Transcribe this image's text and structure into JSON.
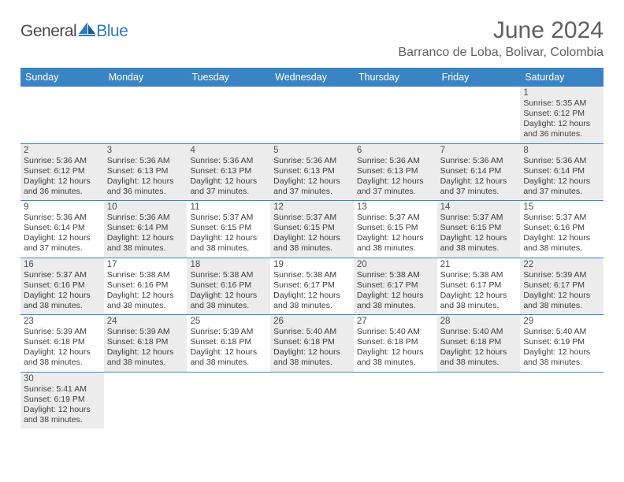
{
  "logo": {
    "part1": "General",
    "part2": "Blue"
  },
  "title": "June 2024",
  "location": "Barranco de Loba, Bolivar, Colombia",
  "colors": {
    "header_bg": "#3b84c4",
    "header_text": "#ffffff",
    "shaded_cell": "#ececec",
    "row_border": "#3b84c4",
    "title_text": "#606060",
    "body_text": "#404040",
    "logo_gray": "#4a4a4a",
    "logo_blue": "#2f7bbf"
  },
  "typography": {
    "title_fontsize": 30,
    "location_fontsize": 16,
    "weekday_fontsize": 12.5,
    "daynum_fontsize": 11.5,
    "body_fontsize": 10.5
  },
  "weekdays": [
    "Sunday",
    "Monday",
    "Tuesday",
    "Wednesday",
    "Thursday",
    "Friday",
    "Saturday"
  ],
  "weeks": [
    [
      {
        "empty": true
      },
      {
        "empty": true
      },
      {
        "empty": true
      },
      {
        "empty": true
      },
      {
        "empty": true
      },
      {
        "empty": true
      },
      {
        "num": "1",
        "shaded": true,
        "sunrise": "Sunrise: 5:35 AM",
        "sunset": "Sunset: 6:12 PM",
        "day1": "Daylight: 12 hours",
        "day2": "and 36 minutes."
      }
    ],
    [
      {
        "num": "2",
        "shaded": true,
        "sunrise": "Sunrise: 5:36 AM",
        "sunset": "Sunset: 6:12 PM",
        "day1": "Daylight: 12 hours",
        "day2": "and 36 minutes."
      },
      {
        "num": "3",
        "shaded": true,
        "sunrise": "Sunrise: 5:36 AM",
        "sunset": "Sunset: 6:13 PM",
        "day1": "Daylight: 12 hours",
        "day2": "and 36 minutes."
      },
      {
        "num": "4",
        "shaded": true,
        "sunrise": "Sunrise: 5:36 AM",
        "sunset": "Sunset: 6:13 PM",
        "day1": "Daylight: 12 hours",
        "day2": "and 37 minutes."
      },
      {
        "num": "5",
        "shaded": true,
        "sunrise": "Sunrise: 5:36 AM",
        "sunset": "Sunset: 6:13 PM",
        "day1": "Daylight: 12 hours",
        "day2": "and 37 minutes."
      },
      {
        "num": "6",
        "shaded": true,
        "sunrise": "Sunrise: 5:36 AM",
        "sunset": "Sunset: 6:13 PM",
        "day1": "Daylight: 12 hours",
        "day2": "and 37 minutes."
      },
      {
        "num": "7",
        "shaded": true,
        "sunrise": "Sunrise: 5:36 AM",
        "sunset": "Sunset: 6:14 PM",
        "day1": "Daylight: 12 hours",
        "day2": "and 37 minutes."
      },
      {
        "num": "8",
        "shaded": true,
        "sunrise": "Sunrise: 5:36 AM",
        "sunset": "Sunset: 6:14 PM",
        "day1": "Daylight: 12 hours",
        "day2": "and 37 minutes."
      }
    ],
    [
      {
        "num": "9",
        "shaded": false,
        "sunrise": "Sunrise: 5:36 AM",
        "sunset": "Sunset: 6:14 PM",
        "day1": "Daylight: 12 hours",
        "day2": "and 37 minutes."
      },
      {
        "num": "10",
        "shaded": true,
        "sunrise": "Sunrise: 5:36 AM",
        "sunset": "Sunset: 6:14 PM",
        "day1": "Daylight: 12 hours",
        "day2": "and 38 minutes."
      },
      {
        "num": "11",
        "shaded": false,
        "sunrise": "Sunrise: 5:37 AM",
        "sunset": "Sunset: 6:15 PM",
        "day1": "Daylight: 12 hours",
        "day2": "and 38 minutes."
      },
      {
        "num": "12",
        "shaded": true,
        "sunrise": "Sunrise: 5:37 AM",
        "sunset": "Sunset: 6:15 PM",
        "day1": "Daylight: 12 hours",
        "day2": "and 38 minutes."
      },
      {
        "num": "13",
        "shaded": false,
        "sunrise": "Sunrise: 5:37 AM",
        "sunset": "Sunset: 6:15 PM",
        "day1": "Daylight: 12 hours",
        "day2": "and 38 minutes."
      },
      {
        "num": "14",
        "shaded": true,
        "sunrise": "Sunrise: 5:37 AM",
        "sunset": "Sunset: 6:15 PM",
        "day1": "Daylight: 12 hours",
        "day2": "and 38 minutes."
      },
      {
        "num": "15",
        "shaded": false,
        "sunrise": "Sunrise: 5:37 AM",
        "sunset": "Sunset: 6:16 PM",
        "day1": "Daylight: 12 hours",
        "day2": "and 38 minutes."
      }
    ],
    [
      {
        "num": "16",
        "shaded": true,
        "sunrise": "Sunrise: 5:37 AM",
        "sunset": "Sunset: 6:16 PM",
        "day1": "Daylight: 12 hours",
        "day2": "and 38 minutes."
      },
      {
        "num": "17",
        "shaded": false,
        "sunrise": "Sunrise: 5:38 AM",
        "sunset": "Sunset: 6:16 PM",
        "day1": "Daylight: 12 hours",
        "day2": "and 38 minutes."
      },
      {
        "num": "18",
        "shaded": true,
        "sunrise": "Sunrise: 5:38 AM",
        "sunset": "Sunset: 6:16 PM",
        "day1": "Daylight: 12 hours",
        "day2": "and 38 minutes."
      },
      {
        "num": "19",
        "shaded": false,
        "sunrise": "Sunrise: 5:38 AM",
        "sunset": "Sunset: 6:17 PM",
        "day1": "Daylight: 12 hours",
        "day2": "and 38 minutes."
      },
      {
        "num": "20",
        "shaded": true,
        "sunrise": "Sunrise: 5:38 AM",
        "sunset": "Sunset: 6:17 PM",
        "day1": "Daylight: 12 hours",
        "day2": "and 38 minutes."
      },
      {
        "num": "21",
        "shaded": false,
        "sunrise": "Sunrise: 5:38 AM",
        "sunset": "Sunset: 6:17 PM",
        "day1": "Daylight: 12 hours",
        "day2": "and 38 minutes."
      },
      {
        "num": "22",
        "shaded": true,
        "sunrise": "Sunrise: 5:39 AM",
        "sunset": "Sunset: 6:17 PM",
        "day1": "Daylight: 12 hours",
        "day2": "and 38 minutes."
      }
    ],
    [
      {
        "num": "23",
        "shaded": false,
        "sunrise": "Sunrise: 5:39 AM",
        "sunset": "Sunset: 6:18 PM",
        "day1": "Daylight: 12 hours",
        "day2": "and 38 minutes."
      },
      {
        "num": "24",
        "shaded": true,
        "sunrise": "Sunrise: 5:39 AM",
        "sunset": "Sunset: 6:18 PM",
        "day1": "Daylight: 12 hours",
        "day2": "and 38 minutes."
      },
      {
        "num": "25",
        "shaded": false,
        "sunrise": "Sunrise: 5:39 AM",
        "sunset": "Sunset: 6:18 PM",
        "day1": "Daylight: 12 hours",
        "day2": "and 38 minutes."
      },
      {
        "num": "26",
        "shaded": true,
        "sunrise": "Sunrise: 5:40 AM",
        "sunset": "Sunset: 6:18 PM",
        "day1": "Daylight: 12 hours",
        "day2": "and 38 minutes."
      },
      {
        "num": "27",
        "shaded": false,
        "sunrise": "Sunrise: 5:40 AM",
        "sunset": "Sunset: 6:18 PM",
        "day1": "Daylight: 12 hours",
        "day2": "and 38 minutes."
      },
      {
        "num": "28",
        "shaded": true,
        "sunrise": "Sunrise: 5:40 AM",
        "sunset": "Sunset: 6:18 PM",
        "day1": "Daylight: 12 hours",
        "day2": "and 38 minutes."
      },
      {
        "num": "29",
        "shaded": false,
        "sunrise": "Sunrise: 5:40 AM",
        "sunset": "Sunset: 6:19 PM",
        "day1": "Daylight: 12 hours",
        "day2": "and 38 minutes."
      }
    ],
    [
      {
        "num": "30",
        "shaded": true,
        "sunrise": "Sunrise: 5:41 AM",
        "sunset": "Sunset: 6:19 PM",
        "day1": "Daylight: 12 hours",
        "day2": "and 38 minutes."
      },
      {
        "empty": true
      },
      {
        "empty": true
      },
      {
        "empty": true
      },
      {
        "empty": true
      },
      {
        "empty": true
      },
      {
        "empty": true
      }
    ]
  ]
}
